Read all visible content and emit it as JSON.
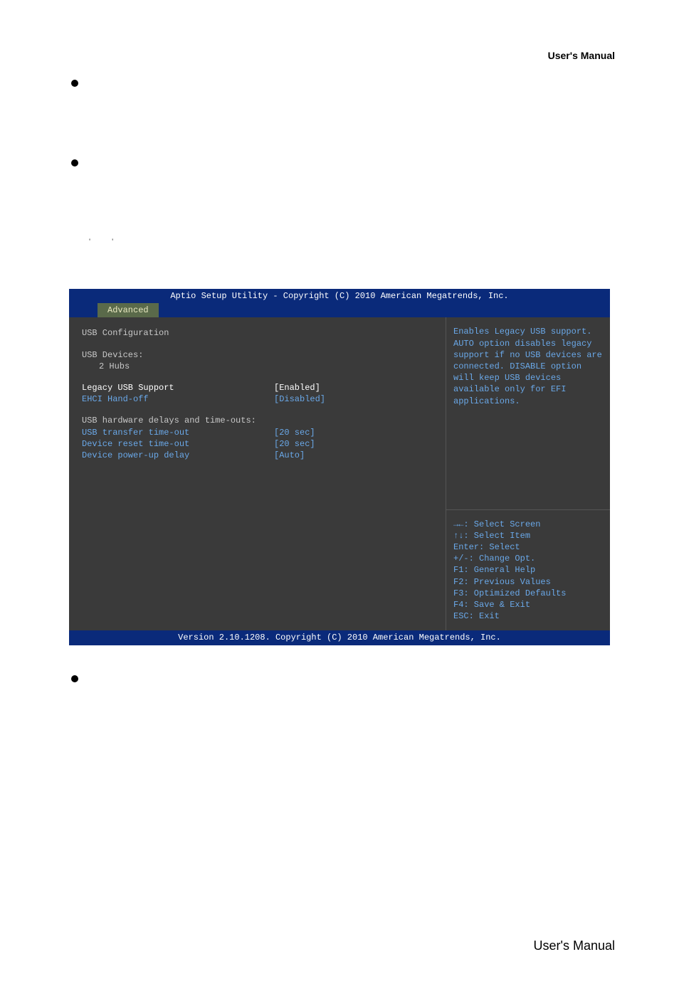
{
  "header": {
    "right_label": "User's  Manual"
  },
  "quotes": {
    "left": "'",
    "right": "'"
  },
  "bios": {
    "titlebar": "Aptio Setup Utility - Copyright (C) 2010 American Megatrends, Inc.",
    "tab": "Advanced",
    "left": {
      "title": "USB Configuration",
      "devices_label": "USB Devices:",
      "devices_value": "2 Hubs",
      "rows": [
        {
          "key": "Legacy USB Support",
          "val": "[Enabled]",
          "highlight": true
        },
        {
          "key": "EHCI Hand-off",
          "val": "[Disabled]",
          "highlight": false
        }
      ],
      "section2_label": "USB hardware delays and time-outs:",
      "rows2": [
        {
          "key": "USB transfer time-out",
          "val": "[20 sec]"
        },
        {
          "key": "Device reset time-out",
          "val": "[20 sec]"
        },
        {
          "key": "Device power-up delay",
          "val": "[Auto]"
        }
      ]
    },
    "help": "Enables Legacy USB support. AUTO option disables legacy support if no USB devices are connected. DISABLE option will keep USB devices available only for EFI applications.",
    "keys": [
      "→←: Select Screen",
      "↑↓: Select Item",
      "Enter: Select",
      "+/-: Change Opt.",
      "F1: General Help",
      "F2: Previous Values",
      "F3: Optimized Defaults",
      "F4: Save & Exit",
      "ESC: Exit"
    ],
    "footer": "Version 2.10.1208. Copyright (C) 2010 American Megatrends, Inc."
  },
  "page_footer": "User's  Manual",
  "colors": {
    "bios_blue": "#0a2a7a",
    "bios_bg": "#3a3a3a",
    "bios_tab_bg": "#5a6a4a",
    "bios_text_light": "#c8c8c8",
    "bios_text_link": "#6aa8e8",
    "bios_text_hl": "#ffffff"
  }
}
